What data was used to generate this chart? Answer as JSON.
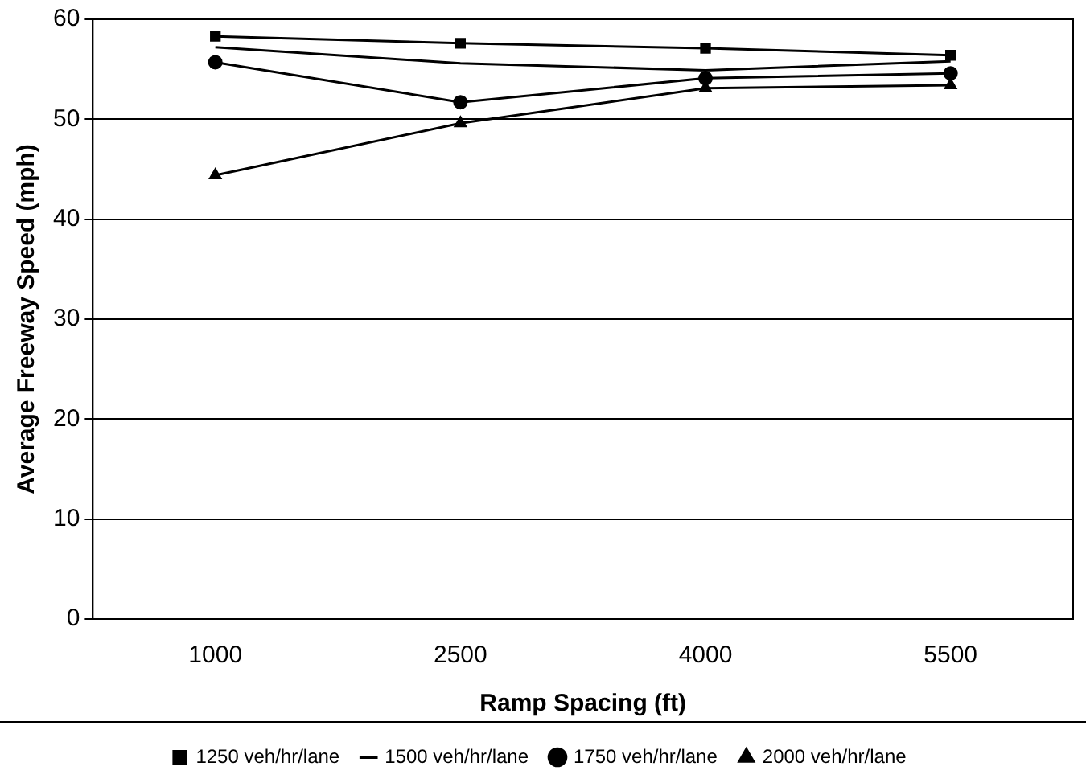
{
  "chart_data": {
    "type": "line",
    "xlabel": "Ramp Spacing (ft)",
    "ylabel": "Average Freeway Speed (mph)",
    "categories": [
      "1000",
      "2500",
      "4000",
      "5500"
    ],
    "series": [
      {
        "name": "1250 veh/hr/lane",
        "color": "#000000",
        "marker": "square",
        "values": [
          58.3,
          57.6,
          57.1,
          56.4
        ]
      },
      {
        "name": "1500 veh/hr/lane",
        "color": "#000000",
        "marker": "none",
        "values": [
          57.2,
          55.6,
          54.9,
          55.8
        ]
      },
      {
        "name": "1750 veh/hr/lane",
        "color": "#000000",
        "marker": "circle",
        "values": [
          55.7,
          51.7,
          54.1,
          54.6
        ]
      },
      {
        "name": "2000 veh/hr/lane",
        "color": "#000000",
        "marker": "triangle",
        "values": [
          44.4,
          49.6,
          53.1,
          53.4
        ]
      }
    ],
    "ylim": [
      0,
      60
    ],
    "yticks": [
      0,
      10,
      20,
      30,
      40,
      50,
      60
    ],
    "grid": "y",
    "legend": "bottom"
  }
}
